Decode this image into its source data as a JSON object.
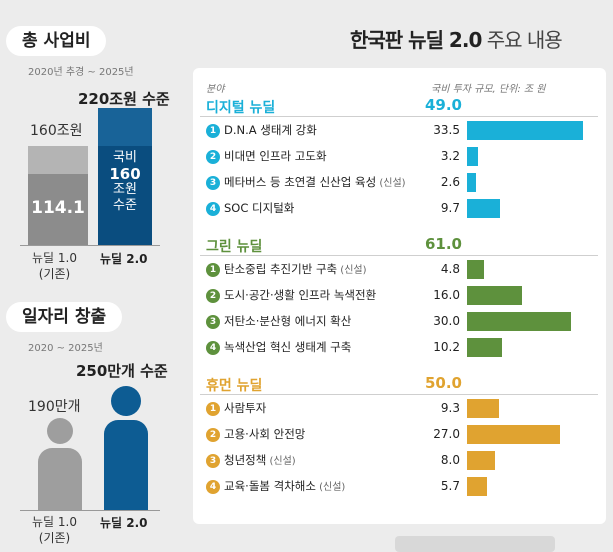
{
  "title": {
    "bold": "한국판 뉴딜 2.0",
    "light": " 주요 내용"
  },
  "total": {
    "tag": "총 사업비",
    "period": "2020년 추경 ~ 2025년",
    "new_label": "220조원 수준",
    "old_label": "160조원",
    "old_value": "114.1",
    "new_bar_lines": [
      "국비",
      "160",
      "조원",
      "수준"
    ],
    "x_old": [
      "뉴딜 1.0",
      "(기존)"
    ],
    "x_new": "뉴딜 2.0"
  },
  "jobs": {
    "tag": "일자리 창출",
    "period": "2020 ~ 2025년",
    "new_label": "250만개 수준",
    "old_label": "190만개",
    "x_old": [
      "뉴딜 1.0",
      "(기존)"
    ],
    "x_new": "뉴딜 2.0"
  },
  "panel": {
    "header_left": "분야",
    "header_right": "국비 투자 규모, 단위: 조 원",
    "colors": {
      "digital": "#1ab0d8",
      "green": "#5e913d",
      "human": "#e0a330"
    }
  },
  "chart_data": [
    {
      "type": "bar",
      "title": "총 사업비",
      "categories": [
        "뉴딜 1.0 (기존)",
        "뉴딜 2.0"
      ],
      "series": [
        {
          "name": "국비",
          "values": [
            114.1,
            160
          ]
        },
        {
          "name": "총 사업비",
          "values": [
            160,
            220
          ]
        }
      ]
    },
    {
      "type": "bar",
      "title": "일자리 창출",
      "categories": [
        "뉴딜 1.0 (기존)",
        "뉴딜 2.0"
      ],
      "values": [
        190,
        250
      ]
    },
    {
      "type": "bar",
      "title": "한국판 뉴딜 2.0 주요 내용",
      "groups": [
        {
          "name": "디지털 뉴딜",
          "total": "49.0",
          "color": "#1ab0d8",
          "items": [
            {
              "num": "1",
              "label": "D.N.A 생태계 강화",
              "tag": "",
              "value": 33.5,
              "value_text": "33.5"
            },
            {
              "num": "2",
              "label": "비대면 인프라 고도화",
              "tag": "",
              "value": 3.2,
              "value_text": "3.2"
            },
            {
              "num": "3",
              "label": "메타버스 등 초연결 신산업 육성",
              "tag": "(신설)",
              "value": 2.6,
              "value_text": "2.6"
            },
            {
              "num": "4",
              "label": "SOC 디지털화",
              "tag": "",
              "value": 9.7,
              "value_text": "9.7"
            }
          ]
        },
        {
          "name": "그린 뉴딜",
          "total": "61.0",
          "color": "#5e913d",
          "items": [
            {
              "num": "1",
              "label": "탄소중립 추진기반 구축",
              "tag": "(신설)",
              "value": 4.8,
              "value_text": "4.8"
            },
            {
              "num": "2",
              "label": "도시·공간·생활 인프라 녹색전환",
              "tag": "",
              "value": 16.0,
              "value_text": "16.0"
            },
            {
              "num": "3",
              "label": "저탄소·분산형 에너지 확산",
              "tag": "",
              "value": 30.0,
              "value_text": "30.0"
            },
            {
              "num": "4",
              "label": "녹색산업 혁신 생태계 구축",
              "tag": "",
              "value": 10.2,
              "value_text": "10.2"
            }
          ]
        },
        {
          "name": "휴먼 뉴딜",
          "total": "50.0",
          "color": "#e0a330",
          "items": [
            {
              "num": "1",
              "label": "사람투자",
              "tag": "",
              "value": 9.3,
              "value_text": "9.3"
            },
            {
              "num": "2",
              "label": "고용·사회 안전망",
              "tag": "",
              "value": 27.0,
              "value_text": "27.0"
            },
            {
              "num": "3",
              "label": "청년정책",
              "tag": "(신설)",
              "value": 8.0,
              "value_text": "8.0"
            },
            {
              "num": "4",
              "label": "교육·돌봄 격차해소",
              "tag": "(신설)",
              "value": 5.7,
              "value_text": "5.7"
            }
          ]
        }
      ]
    }
  ]
}
